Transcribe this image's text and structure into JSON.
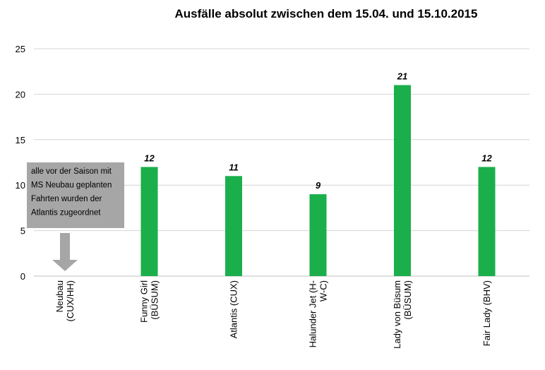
{
  "chart_data": {
    "type": "bar",
    "title": "Ausfälle absolut zwischen dem 15.04. und 15.10.2015",
    "categories": [
      [
        "Neubau",
        "(CUX/HH)"
      ],
      [
        "Funny Girl",
        "(BÜSUM)"
      ],
      [
        "Atlantis (CUX)"
      ],
      [
        "Halunder Jet (H-",
        "W-C)"
      ],
      [
        "Lady von Büsum",
        "(BÜSUM)"
      ],
      [
        "Fair Lady (BHV)"
      ]
    ],
    "values": [
      0,
      12,
      11,
      9,
      21,
      12
    ],
    "data_labels": [
      "",
      "12",
      "11",
      "9",
      "21",
      "12"
    ],
    "ylim": [
      0,
      25
    ],
    "yticks": [
      0,
      5,
      10,
      15,
      20,
      25
    ],
    "grid": true,
    "bar_color": "#1aaf4b",
    "annotation": {
      "lines": [
        "alle vor der Saison mit",
        "MS Neubau geplanten",
        "Fahrten wurden der",
        "Atlantis zugeordnet"
      ],
      "box_color": "#a6a6a6",
      "arrow_color": "#a6a6a6",
      "points_to_category": "Neubau"
    }
  }
}
